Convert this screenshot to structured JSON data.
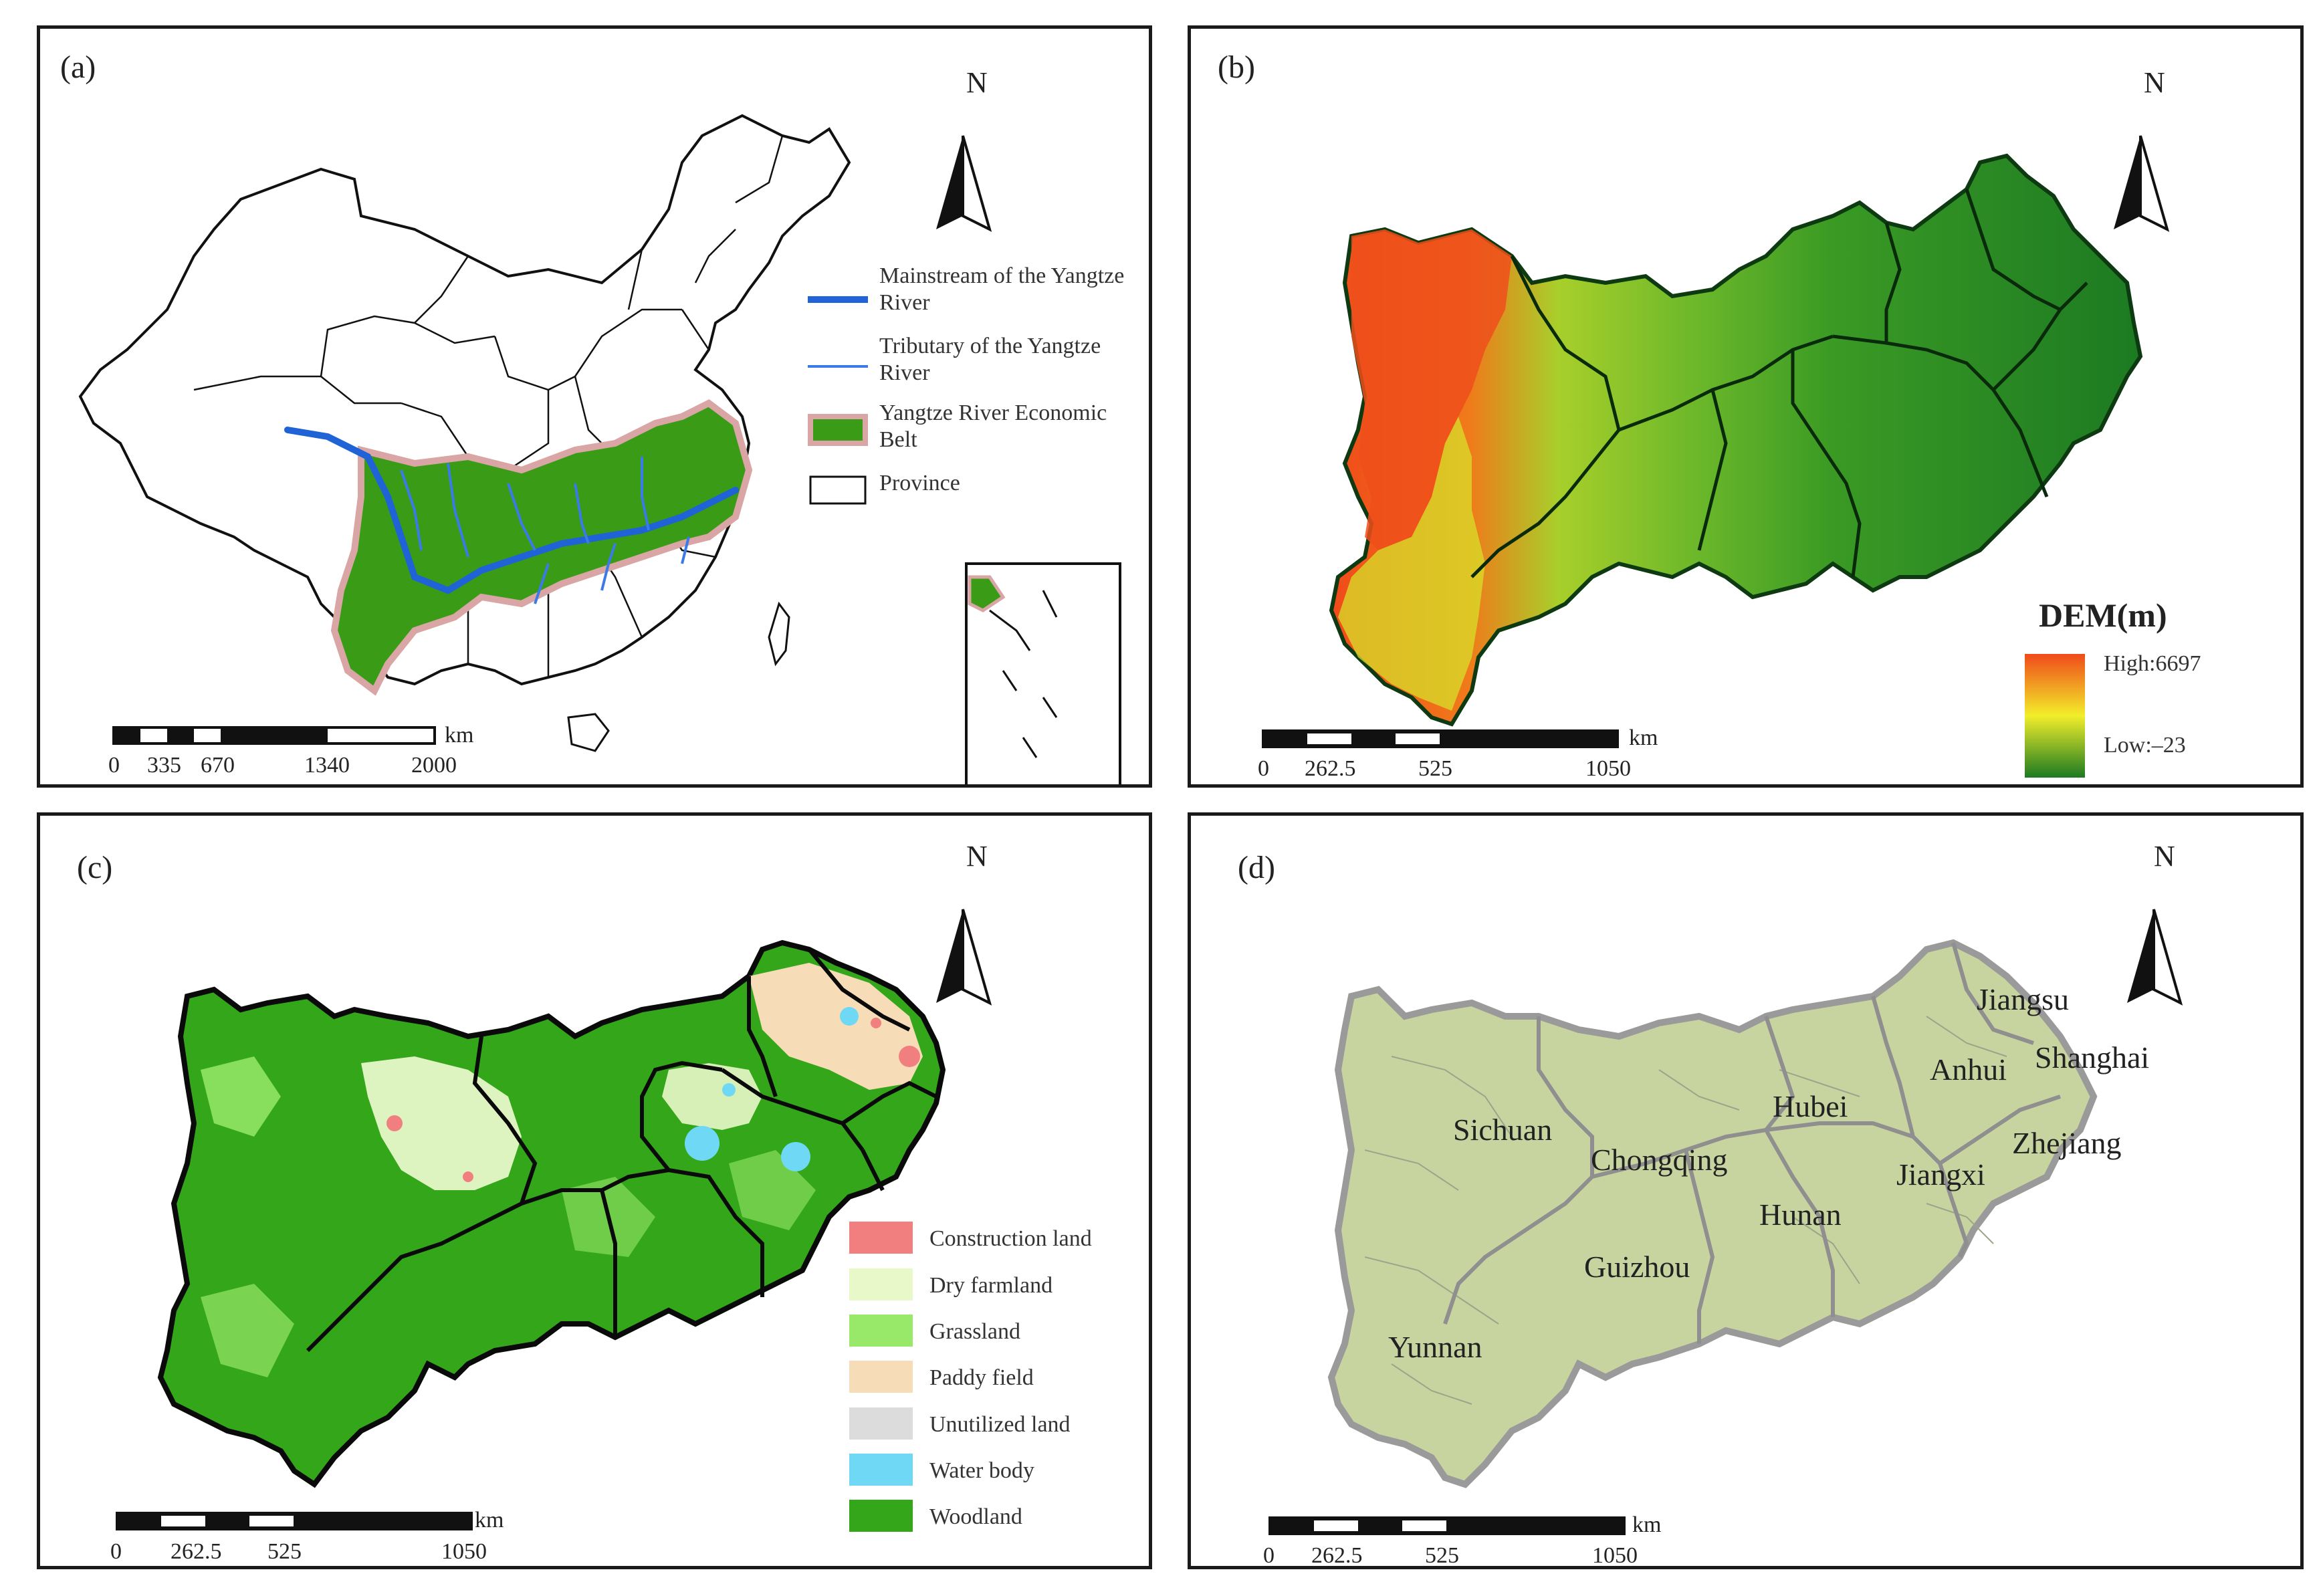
{
  "panels": {
    "a": {
      "label": "(a)",
      "north": "N",
      "legend": [
        {
          "text": "Mainstream of the Yangtze River",
          "kind": "thick-line",
          "color": "#1f63d6"
        },
        {
          "text": "Tributary of the Yangtze River",
          "kind": "thin-line",
          "color": "#3b7be8"
        },
        {
          "text": "Yangtze River Economic Belt",
          "kind": "fill",
          "color": "#3a9b17",
          "stroke": "#d9a5a5"
        },
        {
          "text": "Province",
          "kind": "outline",
          "color": "#ffffff"
        }
      ],
      "scale": {
        "unit": "km",
        "ticks": [
          "0",
          "335",
          "670",
          "1340",
          "2000"
        ]
      }
    },
    "b": {
      "label": "(b)",
      "north": "N",
      "legend_title": "DEM(m)",
      "high_label": "High:6697",
      "low_label": "Low:–23",
      "colors": {
        "high": "#f04a1a",
        "mid": "#f2ee2a",
        "low": "#1c7a22"
      },
      "scale": {
        "unit": "km",
        "ticks": [
          "0",
          "262.5",
          "525",
          "1050"
        ]
      }
    },
    "c": {
      "label": "(c)",
      "north": "N",
      "legend": [
        {
          "text": "Construction land",
          "color": "#f27f7f"
        },
        {
          "text": "Dry farmland",
          "color": "#e8f8c9"
        },
        {
          "text": "Grassland",
          "color": "#98e86a"
        },
        {
          "text": "Paddy field",
          "color": "#f6ddb8"
        },
        {
          "text": "Unutilized land",
          "color": "#dcdcdc"
        },
        {
          "text": "Water body",
          "color": "#6fd9f5"
        },
        {
          "text": "Woodland",
          "color": "#33a61a"
        }
      ],
      "scale": {
        "unit": "km",
        "ticks": [
          "0",
          "262.5",
          "525",
          "1050"
        ]
      }
    },
    "d": {
      "label": "(d)",
      "north": "N",
      "provinces": [
        "Jiangsu",
        "Shanghai",
        "Anhui",
        "Hubei",
        "Zhejiang",
        "Sichuan",
        "Chongqing",
        "Jiangxi",
        "Hunan",
        "Guizhou",
        "Yunnan"
      ],
      "fill_color": "#c8d4a0",
      "scale": {
        "unit": "km",
        "ticks": [
          "0",
          "262.5",
          "525",
          "1050"
        ]
      }
    }
  }
}
